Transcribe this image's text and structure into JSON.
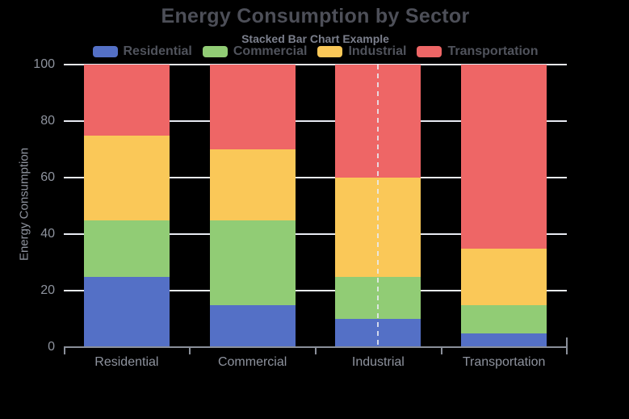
{
  "chart_data": {
    "type": "bar",
    "stacked": true,
    "title": "Energy Consumption by Sector",
    "subtitle": "Stacked Bar Chart Example",
    "ylabel": "Energy Consumption",
    "ylim": [
      0,
      100
    ],
    "yticks": [
      0,
      20,
      40,
      60,
      80,
      100
    ],
    "grid": true,
    "legend_position": "top-center",
    "categories": [
      "Residential",
      "Commercial",
      "Industrial",
      "Transportation"
    ],
    "series": [
      {
        "name": "Residential",
        "color": "#5470C6",
        "values": [
          25,
          15,
          10,
          5
        ]
      },
      {
        "name": "Commercial",
        "color": "#91CC75",
        "values": [
          20,
          30,
          15,
          10
        ]
      },
      {
        "name": "Industrial",
        "color": "#FAC858",
        "values": [
          30,
          25,
          35,
          20
        ]
      },
      {
        "name": "Transportation",
        "color": "#EE6666",
        "values": [
          25,
          30,
          40,
          65
        ]
      }
    ],
    "axis_pointer": {
      "category": "Industrial",
      "style": "dashed-line"
    }
  },
  "colors": {
    "background": "#000000",
    "gridline": "#E7EAF2",
    "axis_line": "#8A8F99",
    "title_text": "#4D4F58",
    "subtitle_text": "#7B7F8C",
    "legend_text": "#50535C",
    "axis_label_text": "#8E939E",
    "pointer_line": "#E8EBF2"
  }
}
